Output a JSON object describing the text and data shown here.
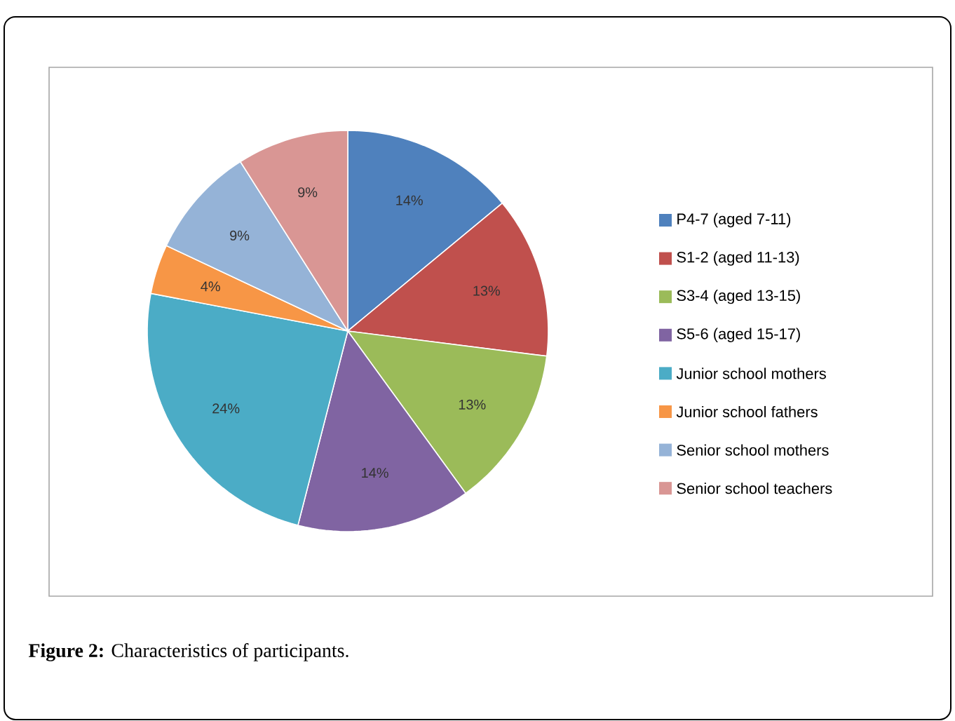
{
  "chart_data": {
    "type": "pie",
    "categories": [
      "P4-7 (aged 7-11)",
      "S1-2 (aged 11-13)",
      "S3-4 (aged 13-15)",
      "S5-6 (aged 15-17)",
      "Junior school mothers",
      "Junior school fathers",
      "Senior school mothers",
      "Senior school teachers"
    ],
    "values": [
      14,
      13,
      13,
      14,
      24,
      4,
      9,
      9
    ],
    "value_labels": [
      "14%",
      "13%",
      "13%",
      "14%",
      "24%",
      "4%",
      "9%",
      "9%"
    ],
    "colors": [
      "#4f81bd",
      "#c0504d",
      "#9bbb59",
      "#8064a2",
      "#4bacc6",
      "#f79646",
      "#95b3d7",
      "#d99694"
    ],
    "legend": "right",
    "annotations": [
      "**Figure 2:** Characteristics of participants."
    ]
  }
}
